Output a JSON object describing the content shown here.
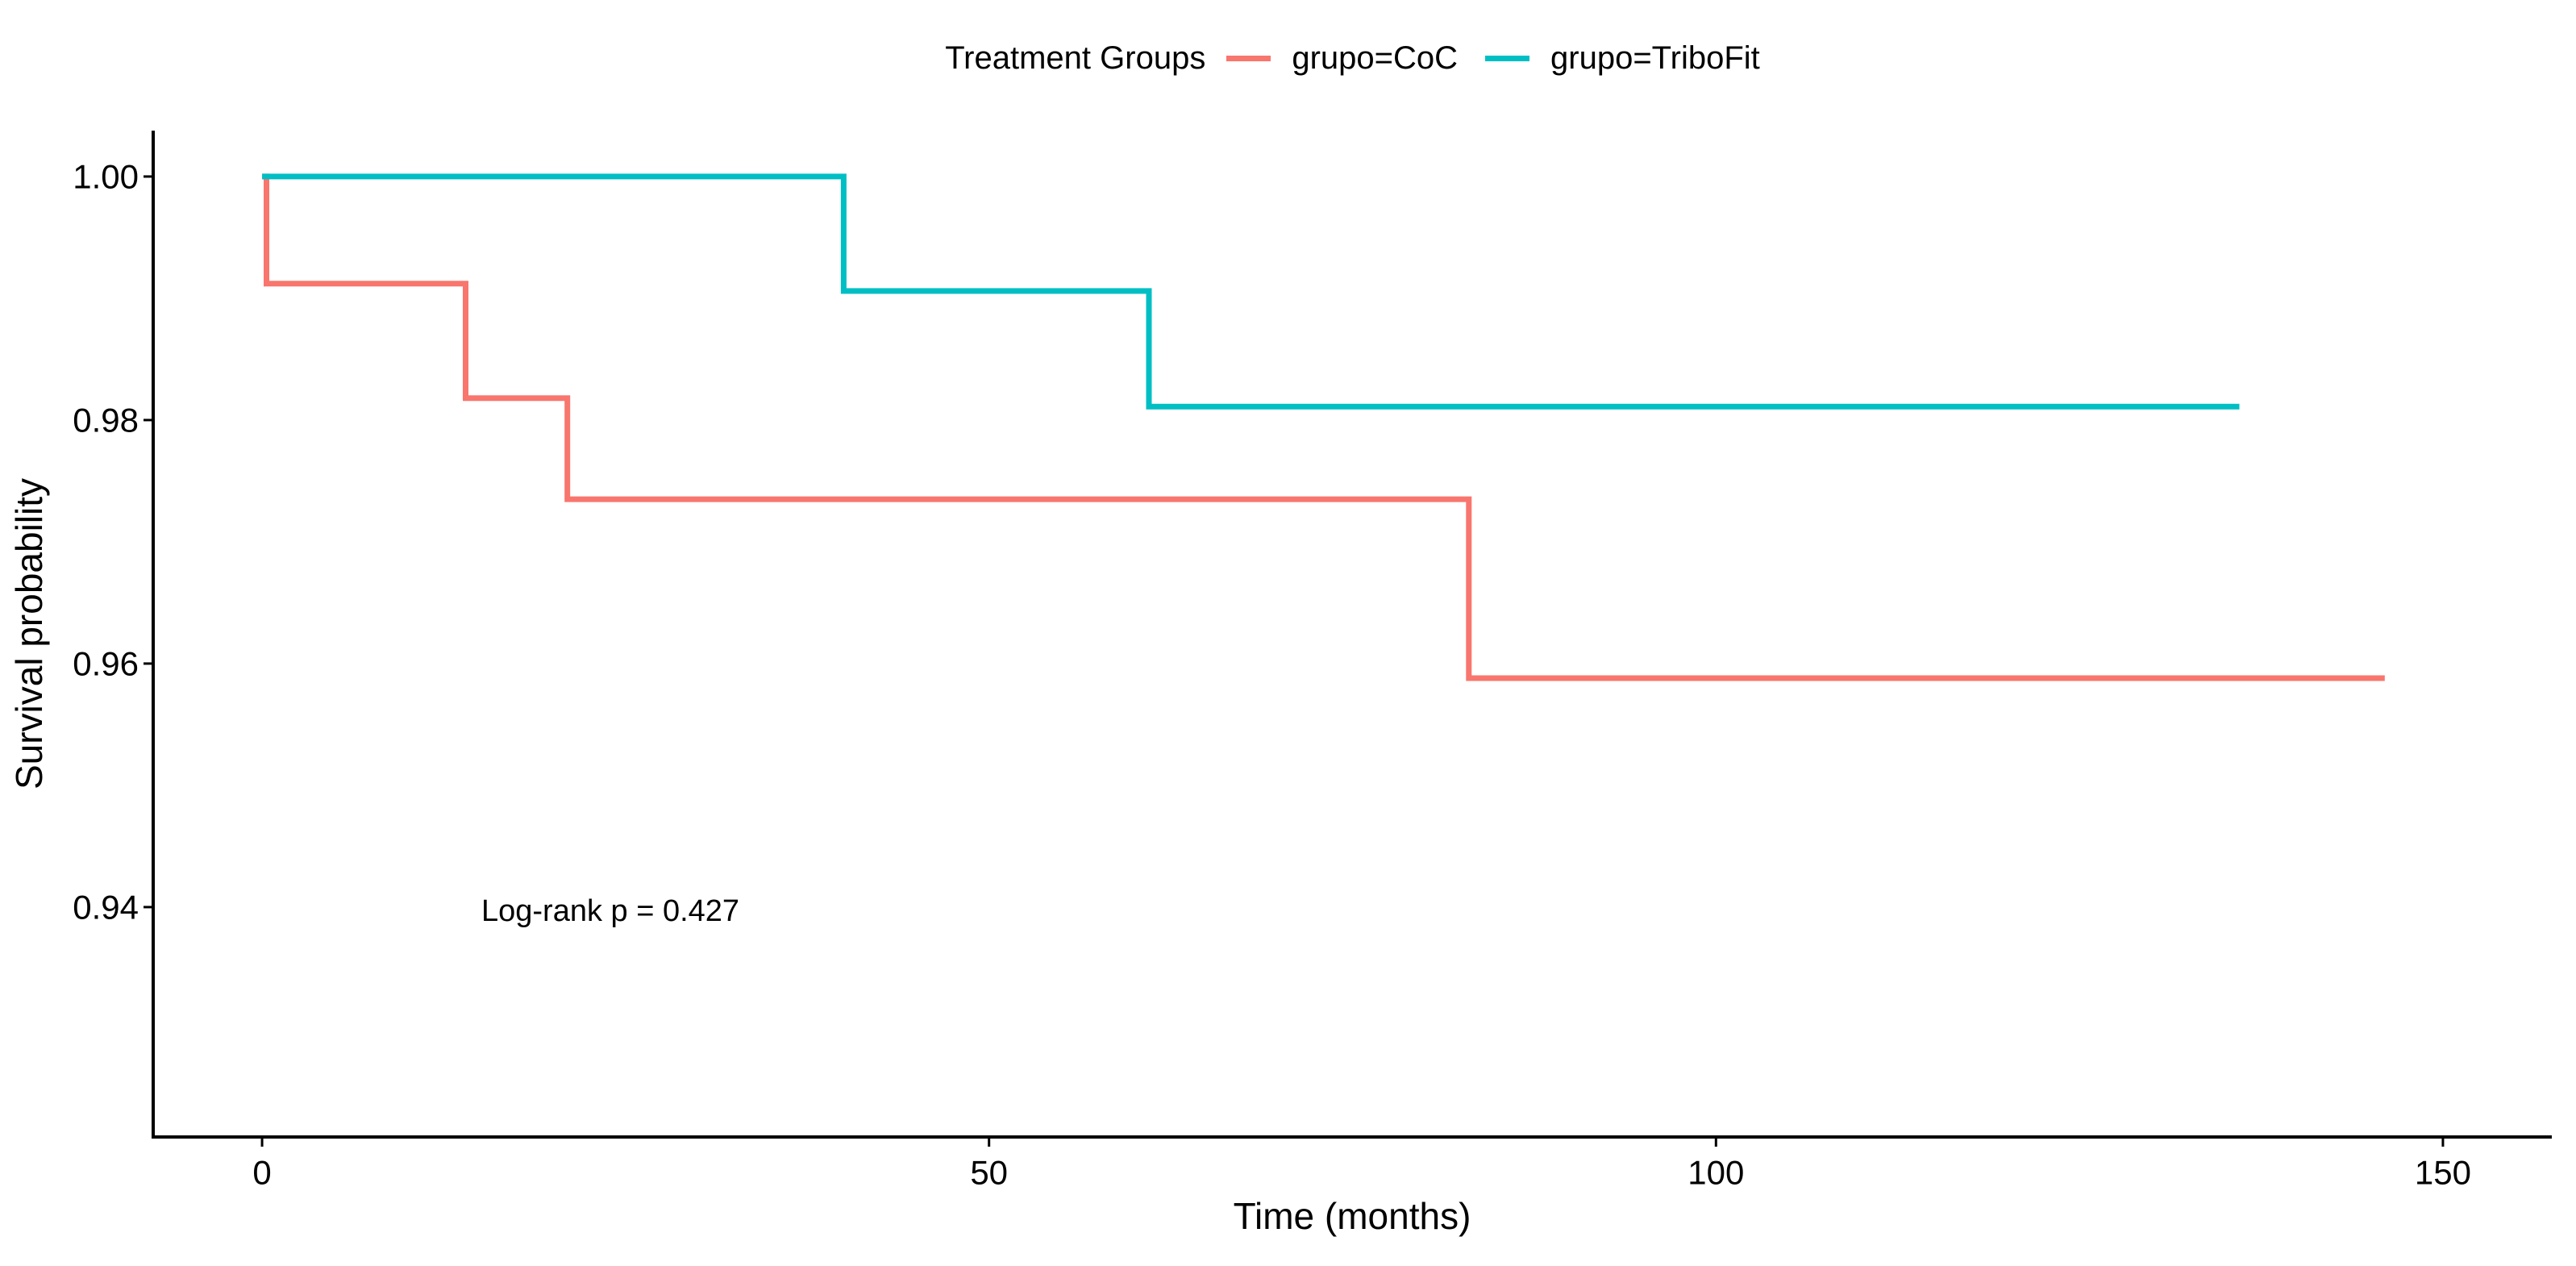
{
  "figure": {
    "background": "#ffffff",
    "kind": "Kaplan-Meier survival plot"
  },
  "legend": {
    "title": "Treatment Groups",
    "items": [
      {
        "label": "grupo=CoC",
        "color": "#F8766D"
      },
      {
        "label": "grupo=TriboFit",
        "color": "#00BFC4"
      }
    ]
  },
  "annotation": {
    "log_rank": "Log-rank p = 0.427"
  },
  "axes": {
    "x": {
      "title": "Time (months)",
      "ticks": [
        0,
        50,
        100,
        150
      ],
      "tick_labels": [
        "0",
        "50",
        "100",
        "150"
      ],
      "domain": [
        -7.49,
        157.49
      ]
    },
    "y": {
      "title": "Survival probability",
      "ticks": [
        1.0,
        0.98,
        0.96,
        0.94
      ],
      "tick_labels": [
        "1.00",
        "0.98",
        "0.96",
        "0.94"
      ],
      "domain": [
        0.92112,
        1.00377
      ]
    }
  },
  "chart_data": {
    "type": "line",
    "subtype": "step-kaplan-meier",
    "title": "",
    "xlabel": "Time (months)",
    "ylabel": "Survival probability",
    "xlim": [
      -7.5,
      157.5
    ],
    "ylim": [
      0.921,
      1.004
    ],
    "grid": false,
    "legend_position": "top-center",
    "series": [
      {
        "name": "grupo=CoC",
        "color": "#F8766D",
        "steps": [
          {
            "t": 0,
            "s": 1.0
          },
          {
            "t": 0.3,
            "s": 0.9912
          },
          {
            "t": 14,
            "s": 0.9818
          },
          {
            "t": 21,
            "s": 0.9735
          },
          {
            "t": 83,
            "s": 0.9588
          },
          {
            "t": 146,
            "s": 0.9588
          }
        ]
      },
      {
        "name": "grupo=TriboFit",
        "color": "#00BFC4",
        "steps": [
          {
            "t": 0,
            "s": 1.0
          },
          {
            "t": 40,
            "s": 0.9906
          },
          {
            "t": 61,
            "s": 0.9811
          },
          {
            "t": 136,
            "s": 0.9811
          }
        ]
      }
    ],
    "annotations": [
      {
        "text": "Log-rank p = 0.427",
        "t": 15,
        "s": 0.94
      }
    ]
  }
}
